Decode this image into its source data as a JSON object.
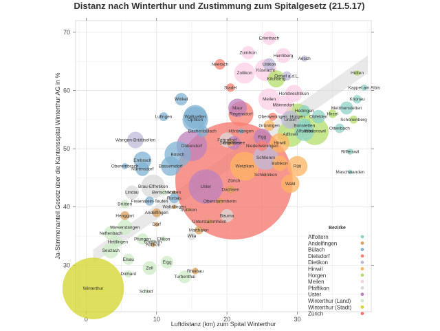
{
  "chart_data": {
    "type": "scatter",
    "title": "Distanz nach Winterthur und Zustimmung zum Spitalgesetz (21.5.17)",
    "xlabel": "Luftdistanz (km) zum Spital Winterthur",
    "ylabel": "Ja-Stimmenanteil Gesetz über die Kantonsspital Winterthur AG in %",
    "xlim": [
      -1.5,
      40.5
    ],
    "ylim": [
      22,
      72
    ],
    "xticks": [
      0,
      10,
      20,
      30
    ],
    "yticks": [
      30,
      40,
      50,
      60,
      70
    ],
    "grid": true,
    "legend_title": "Bezirke",
    "legend_position": "bottom-right",
    "trend_line": {
      "x": [
        1,
        40
      ],
      "y": [
        31.5,
        64.5
      ]
    },
    "bezirke": [
      {
        "name": "Affoltern",
        "color": "#8dd3c7"
      },
      {
        "name": "Andelfingen",
        "color": "#d9a05b"
      },
      {
        "name": "Bülach",
        "color": "#80b1d3"
      },
      {
        "name": "Dielsdorf",
        "color": "#fb8072"
      },
      {
        "name": "Dietikon",
        "color": "#bebada"
      },
      {
        "name": "Hinwil",
        "color": "#fdb462"
      },
      {
        "name": "Horgen",
        "color": "#b3de69"
      },
      {
        "name": "Meilen",
        "color": "#fccde5"
      },
      {
        "name": "Pfäffikon",
        "color": "#d9d9d9"
      },
      {
        "name": "Uster",
        "color": "#bc80bd"
      },
      {
        "name": "Winterthur (Land)",
        "color": "#ccebc5"
      },
      {
        "name": "Winterthur (Stadt)",
        "color": "#d4d42a"
      },
      {
        "name": "Zürich",
        "color": "#f4736a"
      }
    ],
    "points": [
      {
        "name": "Winterthur",
        "x": 1,
        "y": 26,
        "size": 110000,
        "bezirk": "Winterthur (Stadt)"
      },
      {
        "name": "Zürich",
        "x": 21,
        "y": 44.5,
        "size": 400000,
        "bezirk": "Zürich"
      },
      {
        "name": "Schlatt",
        "x": 8.5,
        "y": 25.5,
        "size": 700,
        "bezirk": "Winterthur (Land)"
      },
      {
        "name": "Dinhard",
        "x": 6,
        "y": 28.5,
        "size": 1600,
        "bezirk": "Winterthur (Land)"
      },
      {
        "name": "Turbenthal",
        "x": 14,
        "y": 28,
        "size": 4800,
        "bezirk": "Winterthur (Land)"
      },
      {
        "name": "Rheinau",
        "x": 15.5,
        "y": 29,
        "size": 1300,
        "bezirk": "Andelfingen"
      },
      {
        "name": "Zell",
        "x": 9,
        "y": 29.5,
        "size": 5500,
        "bezirk": "Winterthur (Land)"
      },
      {
        "name": "Elgg",
        "x": 11.5,
        "y": 30.5,
        "size": 4600,
        "bezirk": "Winterthur (Land)"
      },
      {
        "name": "Elsau",
        "x": 6,
        "y": 31,
        "size": 3500,
        "bezirk": "Winterthur (Land)"
      },
      {
        "name": "Seuzach",
        "x": 3.5,
        "y": 32.5,
        "size": 7000,
        "bezirk": "Winterthur (Land)"
      },
      {
        "name": "Hettlingen",
        "x": 4.5,
        "y": 34,
        "size": 3200,
        "bezirk": "Winterthur (Land)"
      },
      {
        "name": "Adlikon",
        "x": 9.5,
        "y": 33.5,
        "size": 650,
        "bezirk": "Andelfingen"
      },
      {
        "name": "Dättlikon",
        "x": 9.5,
        "y": 34,
        "size": 700,
        "bezirk": "Winterthur (Land)"
      },
      {
        "name": "Pfungen",
        "x": 8,
        "y": 34.5,
        "size": 3700,
        "bezirk": "Winterthur (Land)"
      },
      {
        "name": "Ellikon",
        "x": 11,
        "y": 34.5,
        "size": 900,
        "bezirk": "Winterthur (Land)"
      },
      {
        "name": "Wila",
        "x": 15,
        "y": 35,
        "size": 2000,
        "bezirk": "Pfäffikon"
      },
      {
        "name": "Marthalen",
        "x": 16,
        "y": 36,
        "size": 2000,
        "bezirk": "Andelfingen"
      },
      {
        "name": "Neftenbach",
        "x": 3.5,
        "y": 35.5,
        "size": 5500,
        "bezirk": "Winterthur (Land)"
      },
      {
        "name": "Wiesendangen",
        "x": 5.5,
        "y": 36.5,
        "size": 6500,
        "bezirk": "Winterthur (Land)"
      },
      {
        "name": "Dorf",
        "x": 10,
        "y": 37,
        "size": 700,
        "bezirk": "Andelfingen"
      },
      {
        "name": "Unterstammheim",
        "x": 17.5,
        "y": 37.5,
        "size": 900,
        "bezirk": "Andelfingen"
      },
      {
        "name": "Bauma",
        "x": 20,
        "y": 38.5,
        "size": 4900,
        "bezirk": "Pfäffikon"
      },
      {
        "name": "Henggart",
        "x": 5.5,
        "y": 38.5,
        "size": 2300,
        "bezirk": "Andelfingen"
      },
      {
        "name": "Andelfingen",
        "x": 10,
        "y": 39,
        "size": 2200,
        "bezirk": "Andelfingen"
      },
      {
        "name": "Truttikon",
        "x": 14.5,
        "y": 39.5,
        "size": 400,
        "bezirk": "Andelfingen"
      },
      {
        "name": "Waltalingen",
        "x": 12.5,
        "y": 40,
        "size": 600,
        "bezirk": "Andelfingen"
      },
      {
        "name": "Brütten",
        "x": 5.5,
        "y": 40.5,
        "size": 2100,
        "bezirk": "Winterthur (Land)"
      },
      {
        "name": "Freienstein-Teufen",
        "x": 9,
        "y": 41,
        "size": 2400,
        "bezirk": "Bülach"
      },
      {
        "name": "Oberstammheim",
        "x": 19,
        "y": 41,
        "size": 1200,
        "bezirk": "Andelfingen"
      },
      {
        "name": "Rorbas",
        "x": 12.5,
        "y": 41.5,
        "size": 2800,
        "bezirk": "Bülach"
      },
      {
        "name": "Lindau",
        "x": 6.5,
        "y": 42.5,
        "size": 5500,
        "bezirk": "Pfäffikon"
      },
      {
        "name": "Volken",
        "x": 12.5,
        "y": 42.5,
        "size": 350,
        "bezirk": "Andelfingen"
      },
      {
        "name": "Bertschikon",
        "x": 11,
        "y": 42.5,
        "size": 1100,
        "bezirk": "Winterthur (Land)"
      },
      {
        "name": "Brau-Effretikon",
        "x": 9.5,
        "y": 43.5,
        "size": 16500,
        "bezirk": "Pfäffikon"
      },
      {
        "name": "Uster",
        "x": 17,
        "y": 43.5,
        "size": 34000,
        "bezirk": "Uster"
      },
      {
        "name": "Dachsen",
        "x": 20.5,
        "y": 43,
        "size": 1900,
        "bezirk": "Andelfingen"
      },
      {
        "name": "Wald",
        "x": 29,
        "y": 44,
        "size": 9800,
        "bezirk": "Hinwil"
      },
      {
        "name": "Schleinikon",
        "x": 25.5,
        "y": 45.5,
        "size": 700,
        "bezirk": "Dielsdorf"
      },
      {
        "name": "Maschwanden",
        "x": 37.5,
        "y": 46,
        "size": 650,
        "bezirk": "Affoltern"
      },
      {
        "name": "Nürensdorf",
        "x": 8,
        "y": 46.5,
        "size": 5500,
        "bezirk": "Bülach"
      },
      {
        "name": "Oberembrach",
        "x": 5.5,
        "y": 47,
        "size": 1100,
        "bezirk": "Bülach"
      },
      {
        "name": "Bassersdorf",
        "x": 12,
        "y": 47,
        "size": 11000,
        "bezirk": "Bülach"
      },
      {
        "name": "Wetzikon",
        "x": 22.5,
        "y": 47,
        "size": 24000,
        "bezirk": "Hinwil"
      },
      {
        "name": "Rüti",
        "x": 30,
        "y": 47,
        "size": 12000,
        "bezirk": "Hinwil"
      },
      {
        "name": "Bubikon",
        "x": 27.5,
        "y": 47.5,
        "size": 6700,
        "bezirk": "Hinwil"
      },
      {
        "name": "Embrach",
        "x": 8,
        "y": 48,
        "size": 9000,
        "bezirk": "Bülach"
      },
      {
        "name": "Schlieren",
        "x": 25.5,
        "y": 48.5,
        "size": 18000,
        "bezirk": "Dietikon"
      },
      {
        "name": "Bülach",
        "x": 13,
        "y": 49,
        "size": 20000,
        "bezirk": "Bülach"
      },
      {
        "name": "Rifferswil",
        "x": 37.5,
        "y": 49.5,
        "size": 1100,
        "bezirk": "Affoltern"
      },
      {
        "name": "Niederweningen",
        "x": 25,
        "y": 50.5,
        "size": 3100,
        "bezirk": "Dielsdorf"
      },
      {
        "name": "Dübendorf",
        "x": 15,
        "y": 50.5,
        "size": 27000,
        "bezirk": "Uster"
      },
      {
        "name": "Seegräben",
        "x": 20.5,
        "y": 51,
        "size": 1400,
        "bezirk": "Hinwil"
      },
      {
        "name": "Hinwil",
        "x": 27.5,
        "y": 51,
        "size": 11000,
        "bezirk": "Hinwil"
      },
      {
        "name": "Fehraltorf",
        "x": 20,
        "y": 51.5,
        "size": 6500,
        "bezirk": "Pfäffikon"
      },
      {
        "name": "Wangen-Brüttisellen",
        "x": 7,
        "y": 51.5,
        "size": 7800,
        "bezirk": "Dübendorf"
      },
      {
        "name": "Bachenbülach",
        "x": 16.5,
        "y": 53,
        "size": 4000,
        "bezirk": "Bülach"
      },
      {
        "name": "Egg",
        "x": 25,
        "y": 52,
        "size": 8500,
        "bezirk": "Uster"
      },
      {
        "name": "Höntwangen",
        "x": 22,
        "y": 53,
        "size": 900,
        "bezirk": "Bülach"
      },
      {
        "name": "Adliswil",
        "x": 29,
        "y": 52.5,
        "size": 19000,
        "bezirk": "Horgen"
      },
      {
        "name": "Wädenswil",
        "x": 32.5,
        "y": 53,
        "size": 22000,
        "bezirk": "Horgen"
      },
      {
        "name": "Bonstetten",
        "x": 31,
        "y": 54,
        "size": 5500,
        "bezirk": "Affoltern"
      },
      {
        "name": "Greifensee",
        "x": 21,
        "y": 51,
        "size": 5400,
        "bezirk": "Uster"
      },
      {
        "name": "Grüningen",
        "x": 26,
        "y": 54,
        "size": 3400,
        "bezirk": "Hinwil"
      },
      {
        "name": "Schönenberg",
        "x": 38,
        "y": 55,
        "size": 1900,
        "bezirk": "Horgen"
      },
      {
        "name": "Opfikon",
        "x": 15.5,
        "y": 55,
        "size": 19000,
        "bezirk": "Bülach"
      },
      {
        "name": "Ottenbach",
        "x": 36,
        "y": 53.5,
        "size": 2600,
        "bezirk": "Affoltern"
      },
      {
        "name": "Affoltern",
        "x": 31,
        "y": 53,
        "size": 11000,
        "bezirk": "Affoltern"
      },
      {
        "name": "Oberweningen",
        "x": 26.5,
        "y": 55.5,
        "size": 1900,
        "bezirk": "Dielsdorf"
      },
      {
        "name": "Urdorf",
        "x": 29,
        "y": 55,
        "size": 9500,
        "bezirk": "Dietikon"
      },
      {
        "name": "Horgen",
        "x": 30,
        "y": 55.5,
        "size": 20000,
        "bezirk": "Horgen"
      },
      {
        "name": "Obfelden",
        "x": 33,
        "y": 55.5,
        "size": 5300,
        "bezirk": "Affoltern"
      },
      {
        "name": "Wallisellen",
        "x": 15.5,
        "y": 55.5,
        "size": 16000,
        "bezirk": "Bülach"
      },
      {
        "name": "Lufingen",
        "x": 11,
        "y": 55.5,
        "size": 2300,
        "bezirk": "Bülach"
      },
      {
        "name": "Hirzel",
        "x": 35,
        "y": 56,
        "size": 2100,
        "bezirk": "Horgen"
      },
      {
        "name": "Hedingen",
        "x": 31,
        "y": 56.5,
        "size": 3700,
        "bezirk": "Affoltern"
      },
      {
        "name": "Regensdorf",
        "x": 22,
        "y": 56,
        "size": 18000,
        "bezirk": "Dielsdorf"
      },
      {
        "name": "Maur",
        "x": 21.5,
        "y": 57,
        "size": 10000,
        "bezirk": "Uster"
      },
      {
        "name": "Mettmenstetten",
        "x": 37,
        "y": 57,
        "size": 4900,
        "bezirk": "Affoltern"
      },
      {
        "name": "Männedorf",
        "x": 28,
        "y": 57.5,
        "size": 10800,
        "bezirk": "Meilen"
      },
      {
        "name": "Winkel",
        "x": 13.5,
        "y": 58.5,
        "size": 4500,
        "bezirk": "Bülach"
      },
      {
        "name": "Meilen",
        "x": 26,
        "y": 58.5,
        "size": 13500,
        "bezirk": "Meilen"
      },
      {
        "name": "Knonau",
        "x": 38.5,
        "y": 58.5,
        "size": 2100,
        "bezirk": "Affoltern"
      },
      {
        "name": "Hombrechtikon",
        "x": 29.5,
        "y": 59.5,
        "size": 8600,
        "bezirk": "Meilen"
      },
      {
        "name": "Stadel",
        "x": 20.5,
        "y": 60.5,
        "size": 2100,
        "bezirk": "Dielsdorf"
      },
      {
        "name": "Kappel am Albis",
        "x": 39.5,
        "y": 60.5,
        "size": 1100,
        "bezirk": "Affoltern"
      },
      {
        "name": "Kilchberg",
        "x": 27,
        "y": 62,
        "size": 8500,
        "bezirk": "Horgen"
      },
      {
        "name": "Hütten",
        "x": 38.5,
        "y": 63,
        "size": 900,
        "bezirk": "Horgen"
      },
      {
        "name": "Zollikon",
        "x": 22.5,
        "y": 63,
        "size": 12800,
        "bezirk": "Meilen"
      },
      {
        "name": "Küsnacht",
        "x": 25.5,
        "y": 63.5,
        "size": 14000,
        "bezirk": "Meilen"
      },
      {
        "name": "Oetwil a.d.L.",
        "x": 28.5,
        "y": 62.5,
        "size": 2500,
        "bezirk": "Dietikon"
      },
      {
        "name": "Uitikon",
        "x": 26,
        "y": 64.5,
        "size": 4300,
        "bezirk": "Dietikon"
      },
      {
        "name": "Neerach",
        "x": 19,
        "y": 64.5,
        "size": 3200,
        "bezirk": "Dielsdorf"
      },
      {
        "name": "Aesch",
        "x": 31,
        "y": 65.5,
        "size": 1200,
        "bezirk": "Dietikon"
      },
      {
        "name": "Herrliberg",
        "x": 28,
        "y": 66,
        "size": 6400,
        "bezirk": "Meilen"
      },
      {
        "name": "Zumikon",
        "x": 23,
        "y": 66.5,
        "size": 5000,
        "bezirk": "Meilen"
      },
      {
        "name": "Erlenbach",
        "x": 26,
        "y": 69,
        "size": 5400,
        "bezirk": "Meilen"
      }
    ]
  }
}
